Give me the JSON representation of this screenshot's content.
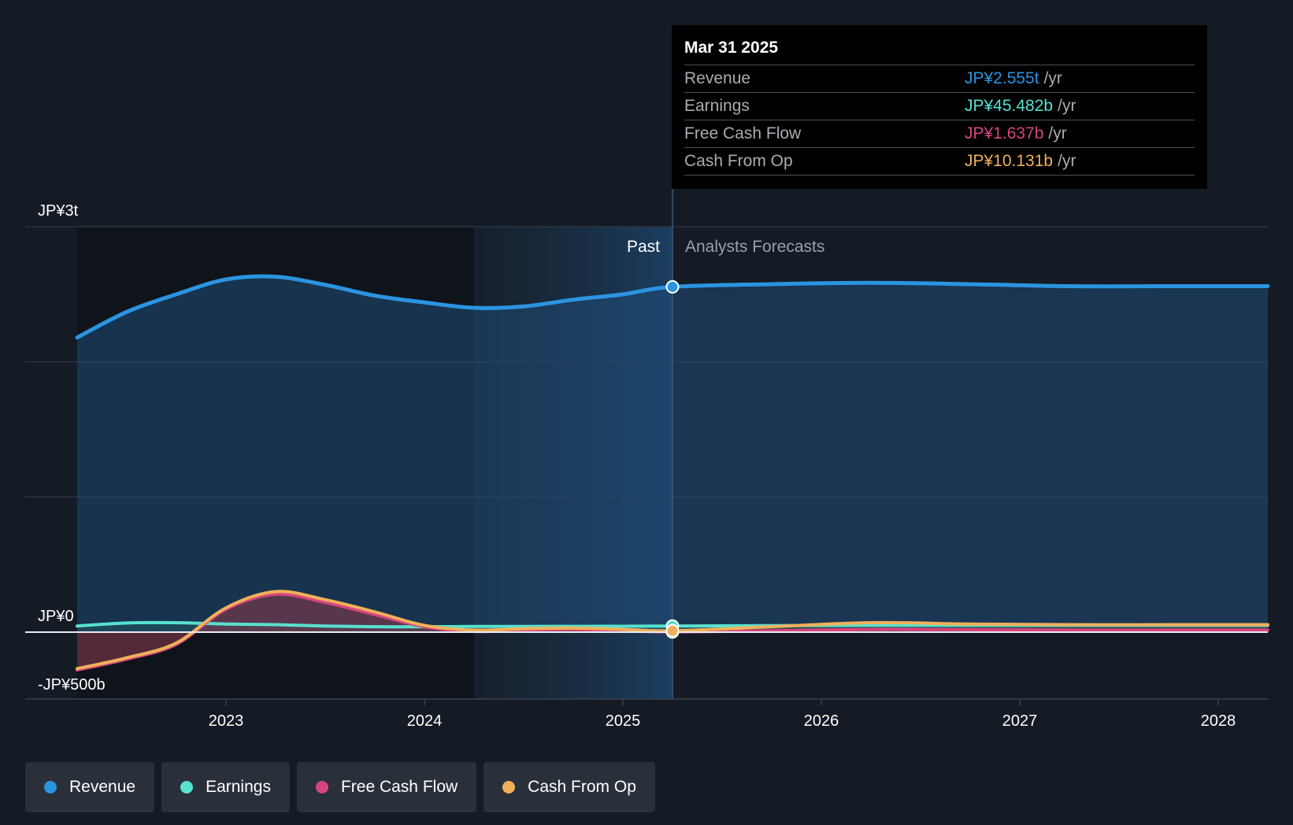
{
  "chart_data": {
    "type": "area",
    "currency_prefix": "JP¥",
    "y_unit": "billions",
    "ylim": [
      -500,
      3000
    ],
    "y_ticks": [
      {
        "value": 3000,
        "label": "JP¥3t"
      },
      {
        "value": 0,
        "label": "JP¥0"
      },
      {
        "value": -500,
        "label": "-JP¥500b"
      }
    ],
    "y_gridlines": [
      3000,
      2000,
      1000,
      0
    ],
    "xlim": [
      2022.0,
      2028.25
    ],
    "x_ticks": [
      {
        "value": 2023,
        "label": "2023"
      },
      {
        "value": 2024,
        "label": "2024"
      },
      {
        "value": 2025,
        "label": "2025"
      },
      {
        "value": 2026,
        "label": "2026"
      },
      {
        "value": 2027,
        "label": "2027"
      },
      {
        "value": 2028,
        "label": "2028"
      }
    ],
    "past_label": "Past",
    "forecast_label": "Analysts Forecasts",
    "past_region_start": 2024.25,
    "divider_x": 2025.25,
    "series": [
      {
        "name": "Revenue",
        "color": "#2b94e0",
        "x": [
          2022.25,
          2022.5,
          2022.75,
          2023.0,
          2023.25,
          2023.5,
          2023.75,
          2024.0,
          2024.25,
          2024.5,
          2024.75,
          2025.0,
          2025.25,
          2025.75,
          2026.25,
          2026.75,
          2027.25,
          2027.75,
          2028.25
        ],
        "values": [
          2180,
          2370,
          2500,
          2610,
          2630,
          2570,
          2490,
          2440,
          2400,
          2410,
          2460,
          2500,
          2555,
          2575,
          2585,
          2575,
          2560,
          2560,
          2560
        ]
      },
      {
        "name": "Earnings",
        "color": "#58e1cf",
        "x": [
          2022.25,
          2022.5,
          2022.75,
          2023.0,
          2023.25,
          2023.5,
          2023.75,
          2024.0,
          2024.25,
          2024.5,
          2024.75,
          2025.0,
          2025.25,
          2025.75,
          2026.25,
          2026.75,
          2027.25,
          2027.75,
          2028.25
        ],
        "values": [
          45,
          68,
          70,
          60,
          55,
          45,
          40,
          40,
          42,
          42,
          43,
          44,
          45.482,
          48,
          50,
          50,
          50,
          50,
          50
        ]
      },
      {
        "name": "Free Cash Flow",
        "color": "#d6457e",
        "x": [
          2022.25,
          2022.5,
          2022.75,
          2023.0,
          2023.25,
          2023.5,
          2023.75,
          2024.0,
          2024.25,
          2024.5,
          2024.75,
          2025.0,
          2025.25,
          2025.75,
          2026.25,
          2026.75,
          2027.25,
          2027.75,
          2028.25
        ],
        "values": [
          -280,
          -200,
          -90,
          170,
          280,
          220,
          130,
          40,
          5,
          15,
          20,
          10,
          1.637,
          10,
          20,
          18,
          15,
          15,
          15
        ]
      },
      {
        "name": "Cash From Op",
        "color": "#f0b05a",
        "x": [
          2022.25,
          2022.5,
          2022.75,
          2023.0,
          2023.25,
          2023.5,
          2023.75,
          2024.0,
          2024.25,
          2024.5,
          2024.75,
          2025.0,
          2025.25,
          2025.75,
          2026.25,
          2026.75,
          2027.25,
          2027.75,
          2028.25
        ],
        "values": [
          -270,
          -190,
          -80,
          180,
          300,
          240,
          150,
          50,
          15,
          25,
          30,
          20,
          10.131,
          40,
          70,
          60,
          55,
          55,
          55
        ]
      }
    ],
    "tooltip": {
      "date": "Mar 31 2025",
      "rows": [
        {
          "metric": "Revenue",
          "value": "JP¥2.555t",
          "unit": "/yr",
          "color": "#2b94e0"
        },
        {
          "metric": "Earnings",
          "value": "JP¥45.482b",
          "unit": "/yr",
          "color": "#58e1cf"
        },
        {
          "metric": "Free Cash Flow",
          "value": "JP¥1.637b",
          "unit": "/yr",
          "color": "#d6457e"
        },
        {
          "metric": "Cash From Op",
          "value": "JP¥10.131b",
          "unit": "/yr",
          "color": "#f0b05a"
        }
      ]
    }
  },
  "legend": [
    {
      "label": "Revenue",
      "color": "#2b94e0"
    },
    {
      "label": "Earnings",
      "color": "#58e1cf"
    },
    {
      "label": "Free Cash Flow",
      "color": "#d6457e"
    },
    {
      "label": "Cash From Op",
      "color": "#f0b05a"
    }
  ]
}
